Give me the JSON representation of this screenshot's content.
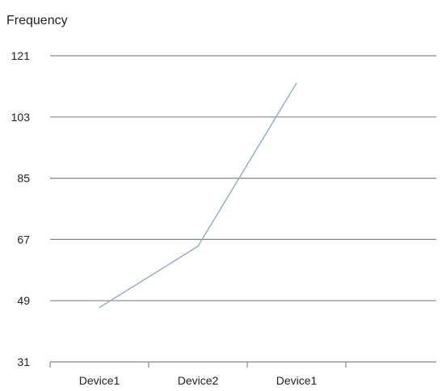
{
  "chart_data": {
    "type": "line",
    "ylabel": "Frequency",
    "categories": [
      "Device1",
      "Device2",
      "Device1"
    ],
    "y_ticks": [
      31,
      49,
      67,
      85,
      103,
      121
    ],
    "ylim": [
      31,
      121
    ],
    "grid": true,
    "series": [
      {
        "values": [
          47,
          65,
          113
        ],
        "color": "#8eaacb"
      }
    ]
  }
}
